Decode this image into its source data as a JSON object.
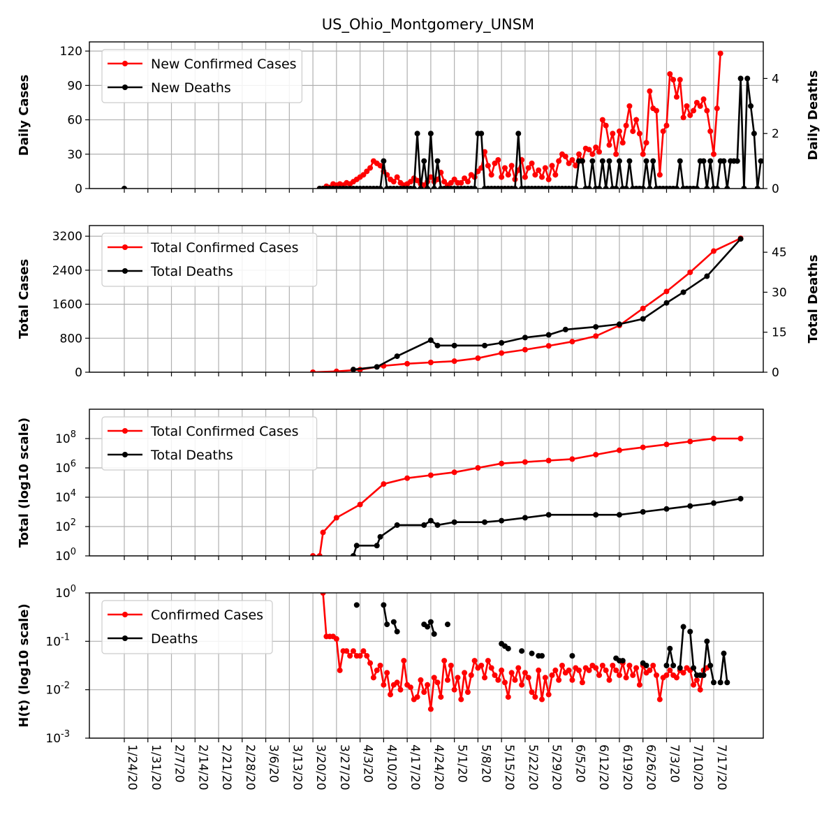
{
  "title": "US_Ohio_Montgomery_UNSM",
  "colors": {
    "confirmed": "#ff0000",
    "deaths": "#000000",
    "grid": "#b0b0b0"
  },
  "x_tick_labels": [
    "1/24/20",
    "1/31/20",
    "2/7/20",
    "2/14/20",
    "2/21/20",
    "2/28/20",
    "3/6/20",
    "3/13/20",
    "3/20/20",
    "3/27/20",
    "4/3/20",
    "4/10/20",
    "4/17/20",
    "4/24/20",
    "5/1/20",
    "5/8/20",
    "5/15/20",
    "5/22/20",
    "5/29/20",
    "6/5/20",
    "6/12/20",
    "6/19/20",
    "6/26/20",
    "7/3/20",
    "7/10/20",
    "7/17/20"
  ],
  "chart_data": [
    {
      "type": "line",
      "ylabel": "Daily Cases",
      "ylabel_right": "Daily Deaths",
      "ylim": [
        0,
        128
      ],
      "ylim_right": [
        0,
        5.33
      ],
      "yticks": [
        "0",
        "30",
        "60",
        "90",
        "120"
      ],
      "yticks_right": [
        "0",
        "2",
        "4"
      ],
      "legend": [
        "New Confirmed Cases",
        "New Deaths"
      ],
      "legend_position": "upper left",
      "grid": true,
      "series": [
        {
          "name": "New Confirmed Cases",
          "axis": "left",
          "x_start": "3/22/20",
          "values": [
            0,
            0,
            2,
            1,
            4,
            3,
            4,
            3,
            5,
            4,
            6,
            8,
            10,
            12,
            15,
            18,
            24,
            22,
            20,
            15,
            12,
            8,
            6,
            10,
            5,
            3,
            4,
            6,
            9,
            7,
            4,
            3,
            6,
            10,
            6,
            8,
            14,
            6,
            3,
            5,
            8,
            5,
            5,
            9,
            6,
            12,
            10,
            15,
            18,
            32,
            20,
            12,
            22,
            25,
            10,
            18,
            12,
            20,
            8,
            16,
            25,
            10,
            18,
            22,
            12,
            16,
            10,
            18,
            8,
            20,
            12,
            24,
            30,
            28,
            22,
            25,
            20,
            30,
            24,
            35,
            34,
            30,
            36,
            32,
            60,
            55,
            38,
            48,
            30,
            50,
            40,
            55,
            72,
            50,
            60,
            48,
            30,
            40,
            85,
            70,
            68,
            12,
            50,
            55,
            100,
            95,
            80,
            95,
            62,
            72,
            64,
            68,
            75,
            72,
            78,
            68,
            50,
            30,
            70,
            118
          ]
        },
        {
          "name": "New Deaths",
          "axis": "right",
          "x_start": "3/22/20",
          "values": [
            0,
            0,
            0,
            0,
            0,
            0,
            0,
            0,
            0,
            0,
            0,
            0,
            0,
            0,
            0,
            0,
            0,
            0,
            0,
            1,
            0,
            0,
            0,
            0,
            0,
            0,
            0,
            0,
            0,
            2,
            0,
            1,
            0,
            2,
            0,
            1,
            0,
            0,
            0,
            0,
            0,
            0,
            0,
            0,
            0,
            0,
            0,
            2,
            2,
            0,
            0,
            0,
            0,
            0,
            0,
            0,
            0,
            0,
            0,
            2,
            0,
            0,
            0,
            0,
            0,
            0,
            0,
            0,
            0,
            0,
            0,
            0,
            0,
            0,
            0,
            0,
            0,
            1,
            1,
            0,
            0,
            1,
            0,
            0,
            1,
            0,
            1,
            0,
            0,
            1,
            0,
            0,
            1,
            0,
            0,
            0,
            0,
            1,
            0,
            1,
            0,
            0,
            0,
            0,
            0,
            0,
            0,
            1,
            0,
            0,
            0,
            0,
            0,
            1,
            1,
            0,
            1,
            0,
            0,
            1,
            1,
            0,
            1,
            1,
            1,
            4,
            0,
            4,
            3,
            2,
            0,
            1,
            1,
            2,
            2,
            4,
            0,
            0,
            2,
            1,
            0,
            0,
            0,
            3,
            1
          ]
        }
      ]
    },
    {
      "type": "line",
      "ylabel": "Total Cases",
      "ylabel_right": "Total Deaths",
      "ylim": [
        0,
        3450
      ],
      "ylim_right": [
        0,
        55
      ],
      "yticks": [
        "0",
        "800",
        "1600",
        "2400",
        "3200"
      ],
      "yticks_right": [
        "0",
        "15",
        "30",
        "45"
      ],
      "legend": [
        "Total Confirmed Cases",
        "Total Deaths"
      ],
      "legend_position": "upper left",
      "grid": true,
      "series": [
        {
          "name": "Total Confirmed Cases",
          "x": [
            "3/20/20",
            "3/27/20",
            "4/3/20",
            "4/10/20",
            "4/17/20",
            "4/24/20",
            "5/1/20",
            "5/8/20",
            "5/15/20",
            "5/22/20",
            "5/29/20",
            "6/5/20",
            "6/12/20",
            "6/19/20",
            "6/26/20",
            "7/3/20",
            "7/10/20",
            "7/17/20",
            "7/25/20"
          ],
          "values": [
            0,
            20,
            60,
            150,
            200,
            230,
            260,
            330,
            450,
            530,
            620,
            720,
            850,
            1100,
            1500,
            1900,
            2350,
            2850,
            3150
          ]
        },
        {
          "name": "Total Deaths",
          "x": [
            "4/1/20",
            "4/8/20",
            "4/14/20",
            "4/24/20",
            "4/26/20",
            "5/1/20",
            "5/10/20",
            "5/15/20",
            "5/22/20",
            "5/29/20",
            "6/3/20",
            "6/12/20",
            "6/19/20",
            "6/26/20",
            "7/3/20",
            "7/8/20",
            "7/15/20",
            "7/25/20"
          ],
          "values": [
            1,
            2,
            6,
            12,
            10,
            10,
            10,
            11,
            13,
            14,
            16,
            17,
            18,
            20,
            26,
            30,
            36,
            50
          ]
        }
      ]
    },
    {
      "type": "line",
      "ylabel": "Total (log10 scale)",
      "yscale": "log",
      "ylim": [
        1,
        10000000000
      ],
      "yticks": [
        "10^0",
        "10^2",
        "10^4",
        "10^6",
        "10^8"
      ],
      "legend": [
        "Total Confirmed Cases",
        "Total Deaths"
      ],
      "legend_position": "upper left",
      "grid": true,
      "series": [
        {
          "name": "Total Confirmed Cases",
          "x": [
            "3/20/20",
            "3/22/20",
            "3/23/20",
            "3/27/20",
            "4/3/20",
            "4/10/20",
            "4/17/20",
            "4/24/20",
            "5/1/20",
            "5/8/20",
            "5/15/20",
            "5/22/20",
            "5/29/20",
            "6/5/20",
            "6/12/20",
            "6/19/20",
            "6/26/20",
            "7/3/20",
            "7/10/20",
            "7/17/20",
            "7/25/20"
          ],
          "log10_values": [
            0,
            0,
            1.6,
            2.6,
            3.5,
            4.9,
            5.3,
            5.5,
            5.7,
            6.0,
            6.3,
            6.4,
            6.5,
            6.6,
            6.9,
            7.2,
            7.4,
            7.6,
            7.8,
            8.0,
            8.0
          ]
        },
        {
          "name": "Total Deaths",
          "x": [
            "4/1/20",
            "4/2/20",
            "4/8/20",
            "4/9/20",
            "4/14/20",
            "4/22/20",
            "4/24/20",
            "4/26/20",
            "5/1/20",
            "5/10/20",
            "5/15/20",
            "5/22/20",
            "5/29/20",
            "6/12/20",
            "6/19/20",
            "6/26/20",
            "7/3/20",
            "7/10/20",
            "7/17/20",
            "7/25/20"
          ],
          "log10_values": [
            0,
            0.7,
            0.7,
            1.3,
            2.1,
            2.1,
            2.4,
            2.1,
            2.3,
            2.3,
            2.4,
            2.6,
            2.8,
            2.8,
            2.8,
            3.0,
            3.2,
            3.4,
            3.6,
            3.9
          ]
        }
      ]
    },
    {
      "type": "line",
      "ylabel": "H(t) (log10 scale)",
      "yscale": "log",
      "ylim": [
        0.001,
        1
      ],
      "yticks": [
        "10^-3",
        "10^-2",
        "10^-1",
        "10^0"
      ],
      "legend": [
        "Confirmed Cases",
        "Deaths"
      ],
      "legend_position": "upper left",
      "grid": true,
      "series": [
        {
          "name": "Confirmed Cases",
          "x_start": "3/23/20",
          "log10_values": [
            0,
            -0.9,
            -0.9,
            -0.9,
            -0.95,
            -1.6,
            -1.2,
            -1.2,
            -1.3,
            -1.2,
            -1.3,
            -1.3,
            -1.2,
            -1.3,
            -1.45,
            -1.75,
            -1.6,
            -1.5,
            -1.9,
            -1.65,
            -2.1,
            -1.9,
            -1.85,
            -2.0,
            -1.4,
            -1.9,
            -1.95,
            -2.2,
            -2.15,
            -1.8,
            -2.05,
            -1.9,
            -2.4,
            -1.75,
            -1.85,
            -2.15,
            -1.4,
            -1.8,
            -1.5,
            -2.0,
            -1.75,
            -2.2,
            -1.65,
            -2.05,
            -1.7,
            -1.4,
            -1.55,
            -1.5,
            -1.75,
            -1.4,
            -1.55,
            -1.7,
            -1.8,
            -1.6,
            -1.85,
            -2.15,
            -1.65,
            -1.8,
            -1.55,
            -1.9,
            -1.65,
            -1.75,
            -2.05,
            -2.15,
            -1.6,
            -2.2,
            -1.75,
            -2.1,
            -1.7,
            -1.6,
            -1.8,
            -1.5,
            -1.65,
            -1.6,
            -1.8,
            -1.55,
            -1.6,
            -1.85,
            -1.55,
            -1.6,
            -1.5,
            -1.55,
            -1.7,
            -1.5,
            -1.6,
            -1.8,
            -1.5,
            -1.6,
            -1.7,
            -1.45,
            -1.75,
            -1.5,
            -1.7,
            -1.55,
            -1.9,
            -1.5,
            -1.65,
            -1.6,
            -1.5,
            -1.7,
            -2.2,
            -1.75,
            -1.7,
            -1.6,
            -1.7,
            -1.75,
            -1.6,
            -1.65,
            -1.55,
            -1.6,
            -1.9,
            -1.8,
            -2.0,
            -1.6,
            -1.55
          ]
        },
        {
          "name": "Deaths",
          "points": [
            {
              "x": "4/2/20",
              "log10_y": -0.25
            },
            {
              "x": "4/10/20",
              "log10_y": -0.25
            },
            {
              "x": "4/11/20",
              "log10_y": -0.65
            },
            {
              "x": "4/13/20",
              "log10_y": -0.6
            },
            {
              "x": "4/14/20",
              "log10_y": -0.8
            },
            {
              "x": "4/22/20",
              "log10_y": -0.65
            },
            {
              "x": "4/23/20",
              "log10_y": -0.7
            },
            {
              "x": "4/24/20",
              "log10_y": -0.6
            },
            {
              "x": "4/25/20",
              "log10_y": -0.85
            },
            {
              "x": "4/29/20",
              "log10_y": -0.65
            },
            {
              "x": "5/15/20",
              "log10_y": -1.05
            },
            {
              "x": "5/16/20",
              "log10_y": -1.1
            },
            {
              "x": "5/17/20",
              "log10_y": -1.15
            },
            {
              "x": "5/21/20",
              "log10_y": -1.2
            },
            {
              "x": "5/24/20",
              "log10_y": -1.25
            },
            {
              "x": "5/26/20",
              "log10_y": -1.3
            },
            {
              "x": "5/27/20",
              "log10_y": -1.3
            },
            {
              "x": "6/5/20",
              "log10_y": -1.3
            },
            {
              "x": "6/18/20",
              "log10_y": -1.35
            },
            {
              "x": "6/19/20",
              "log10_y": -1.4
            },
            {
              "x": "6/20/20",
              "log10_y": -1.4
            },
            {
              "x": "6/26/20",
              "log10_y": -1.45
            },
            {
              "x": "6/27/20",
              "log10_y": -1.5
            },
            {
              "x": "7/3/20",
              "log10_y": -1.5
            },
            {
              "x": "7/4/20",
              "log10_y": -1.15
            },
            {
              "x": "7/5/20",
              "log10_y": -1.5
            },
            {
              "x": "7/7/20",
              "log10_y": -1.55
            },
            {
              "x": "7/8/20",
              "log10_y": -0.7
            },
            {
              "x": "7/10/20",
              "log10_y": -0.8
            },
            {
              "x": "7/11/20",
              "log10_y": -1.55
            },
            {
              "x": "7/12/20",
              "log10_y": -1.7
            },
            {
              "x": "7/13/20",
              "log10_y": -1.7
            },
            {
              "x": "7/14/20",
              "log10_y": -1.7
            },
            {
              "x": "7/15/20",
              "log10_y": -1.0
            },
            {
              "x": "7/16/20",
              "log10_y": -1.5
            },
            {
              "x": "7/17/20",
              "log10_y": -1.85
            },
            {
              "x": "7/19/20",
              "log10_y": -1.85
            },
            {
              "x": "7/20/20",
              "log10_y": -1.25
            },
            {
              "x": "7/21/20",
              "log10_y": -1.85
            }
          ]
        }
      ]
    }
  ]
}
